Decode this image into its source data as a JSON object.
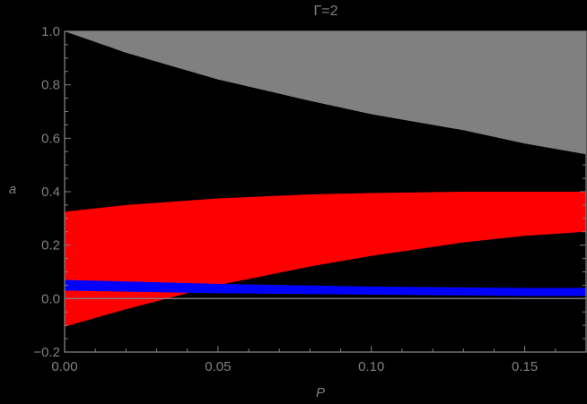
{
  "chart_data": {
    "type": "area",
    "title": "Γ=2",
    "xlabel": "P",
    "ylabel": "a",
    "xlim": [
      0,
      0.17
    ],
    "ylim": [
      -0.2,
      1.0
    ],
    "x_ticks": [
      "0.00",
      "0.05",
      "0.10",
      "0.15"
    ],
    "y_ticks": [
      "−0.2",
      "0.0",
      "0.2",
      "0.4",
      "0.6",
      "0.8",
      "1.0"
    ],
    "grid": false,
    "background": "#000000",
    "series": [
      {
        "name": "gray-region",
        "color": "#808080",
        "x": [
          0.0,
          0.02,
          0.05,
          0.08,
          0.1,
          0.13,
          0.15,
          0.17
        ],
        "upper": [
          1.0,
          1.0,
          1.0,
          1.0,
          1.0,
          1.0,
          1.0,
          1.0
        ],
        "lower": [
          1.0,
          0.92,
          0.82,
          0.74,
          0.69,
          0.63,
          0.58,
          0.54
        ]
      },
      {
        "name": "red-region",
        "color": "#ff0000",
        "x": [
          0.0,
          0.02,
          0.05,
          0.08,
          0.1,
          0.13,
          0.15,
          0.17
        ],
        "upper": [
          0.325,
          0.35,
          0.375,
          0.39,
          0.395,
          0.4,
          0.4,
          0.4
        ],
        "lower": [
          -0.105,
          -0.04,
          0.05,
          0.12,
          0.16,
          0.21,
          0.235,
          0.25
        ]
      },
      {
        "name": "blue-band",
        "color": "#0000ff",
        "x": [
          0.0,
          0.05,
          0.1,
          0.15,
          0.17
        ],
        "upper": [
          0.07,
          0.055,
          0.045,
          0.04,
          0.04
        ],
        "lower": [
          0.03,
          0.02,
          0.015,
          0.01,
          0.01
        ]
      }
    ],
    "reference_line": {
      "y": 0.0,
      "color": "#808080"
    }
  }
}
